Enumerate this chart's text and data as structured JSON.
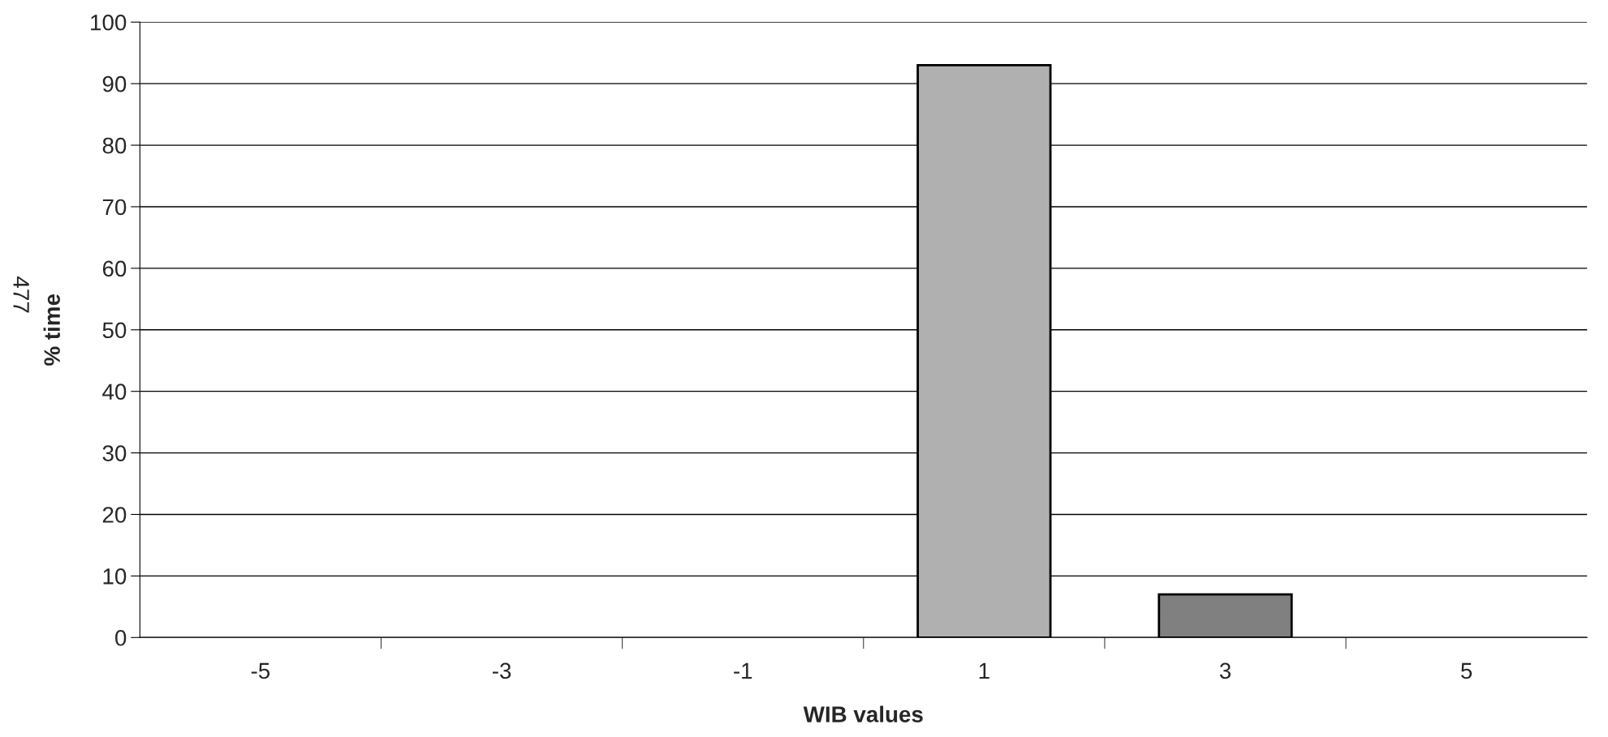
{
  "chart_data": {
    "type": "bar",
    "xlabel": "WIB values",
    "ylabel": "% time",
    "categories": [
      "-5",
      "-3",
      "-1",
      "1",
      "3",
      "5"
    ],
    "values": [
      0,
      0,
      0,
      93,
      7,
      0
    ],
    "colors": [
      "#b0b0b0",
      "#b0b0b0",
      "#b0b0b0",
      "#b0b0b0",
      "#808080",
      "#b0b0b0"
    ],
    "ylim": [
      0,
      100
    ],
    "yticks": [
      0,
      10,
      20,
      30,
      40,
      50,
      60,
      70,
      80,
      90,
      100
    ],
    "grid": "y",
    "annotations": [
      "477"
    ]
  }
}
